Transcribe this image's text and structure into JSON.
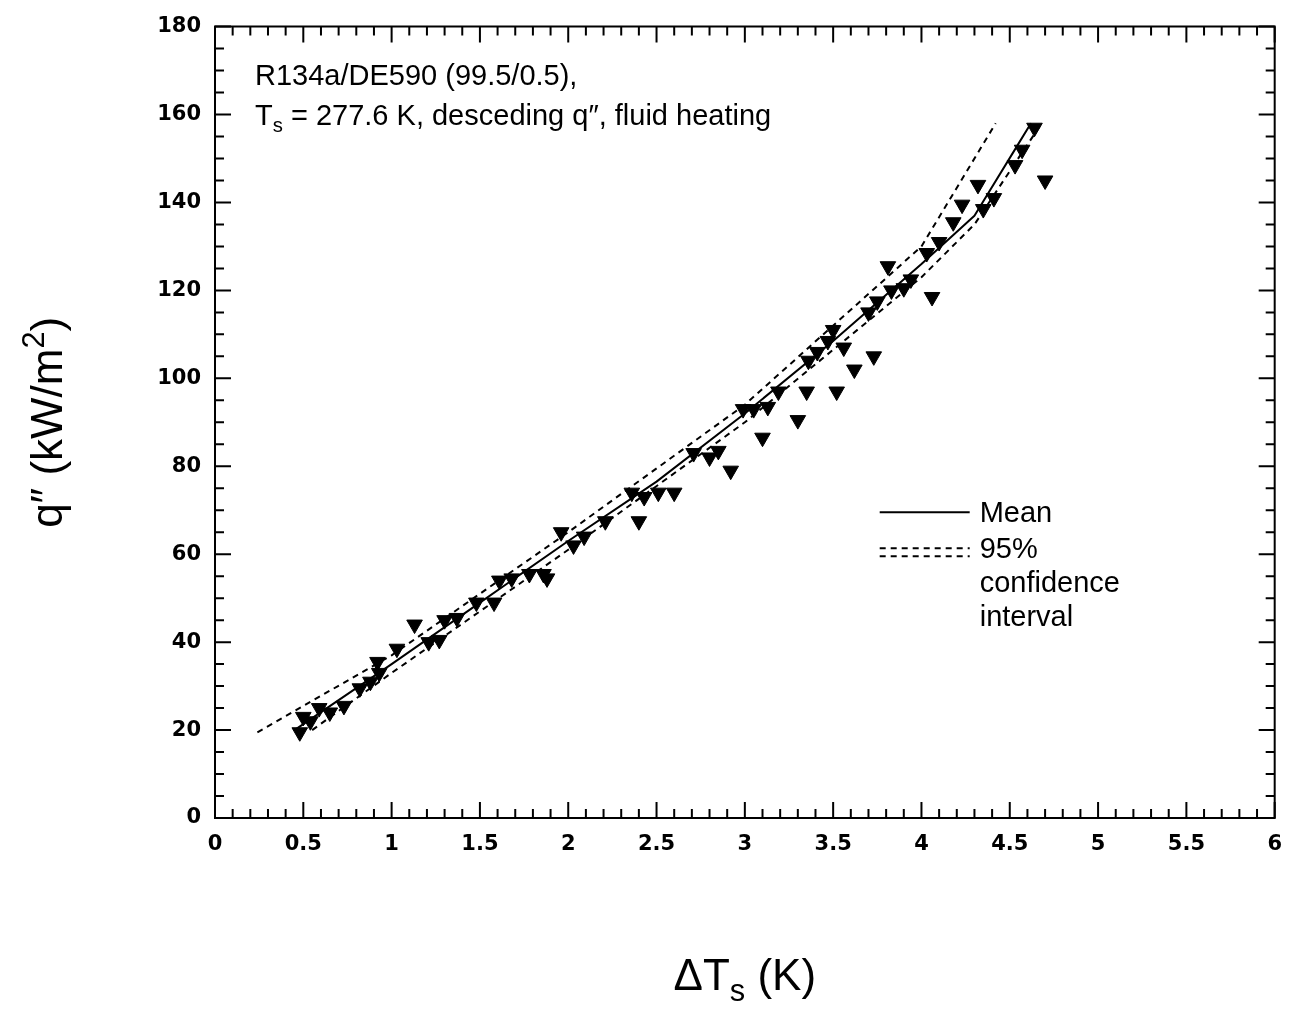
{
  "chart_data": {
    "type": "scatter",
    "title": "R134a/DE590 (99.5/0.5),",
    "subtitle": "T$_{s}$ = 277.6 K, desceding q″, fluid heating",
    "xlabel": "ΔT$_{s}$ (K)",
    "ylabel": "q″ (kW/m$^{2}$)",
    "xlim": [
      0,
      6
    ],
    "ylim": [
      0,
      180
    ],
    "xticks": [
      0,
      {
        "value": 0.1,
        "label": null
      },
      {
        "value": 0.2,
        "label": null
      },
      {
        "value": 0.3,
        "label": null
      },
      {
        "value": 0.4,
        "label": null
      },
      0.5,
      {
        "value": 0.6,
        "label": null
      },
      {
        "value": 0.7,
        "label": null
      },
      {
        "value": 0.8,
        "label": null
      },
      {
        "value": 0.9,
        "label": null
      },
      1,
      {
        "value": 1.1,
        "label": null
      },
      {
        "value": 1.2,
        "label": null
      },
      {
        "value": 1.3,
        "label": null
      },
      {
        "value": 1.4,
        "label": null
      },
      1.5,
      {
        "value": 1.6,
        "label": null
      },
      {
        "value": 1.7,
        "label": null
      },
      {
        "value": 1.8,
        "label": null
      },
      {
        "value": 1.9,
        "label": null
      },
      2,
      {
        "value": 2.1,
        "label": null
      },
      {
        "value": 2.2,
        "label": null
      },
      {
        "value": 2.3,
        "label": null
      },
      {
        "value": 2.4,
        "label": null
      },
      2.5,
      {
        "value": 2.6,
        "label": null
      },
      {
        "value": 2.7,
        "label": null
      },
      {
        "value": 2.8,
        "label": null
      },
      {
        "value": 2.9,
        "label": null
      },
      3,
      {
        "value": 3.1,
        "label": null
      },
      {
        "value": 3.2,
        "label": null
      },
      {
        "value": 3.3,
        "label": null
      },
      {
        "value": 3.4,
        "label": null
      },
      3.5,
      {
        "value": 3.6,
        "label": null
      },
      {
        "value": 3.7,
        "label": null
      },
      {
        "value": 3.8,
        "label": null
      },
      {
        "value": 3.9,
        "label": null
      },
      4,
      {
        "value": 4.1,
        "label": null
      },
      {
        "value": 4.2,
        "label": null
      },
      {
        "value": 4.3,
        "label": null
      },
      {
        "value": 4.4,
        "label": null
      },
      4.5,
      {
        "value": 4.6,
        "label": null
      },
      {
        "value": 4.7,
        "label": null
      },
      {
        "value": 4.8,
        "label": null
      },
      {
        "value": 4.9,
        "label": null
      },
      5,
      {
        "value": 5.1,
        "label": null
      },
      {
        "value": 5.2,
        "label": null
      },
      {
        "value": 5.3,
        "label": null
      },
      {
        "value": 5.4,
        "label": null
      },
      5.5,
      {
        "value": 5.6,
        "label": null
      },
      {
        "value": 5.7,
        "label": null
      },
      {
        "value": 5.8,
        "label": null
      },
      {
        "value": 5.9,
        "label": null
      },
      6
    ],
    "yticks": [
      0,
      {
        "value": 5,
        "label": null
      },
      {
        "value": 10,
        "label": null
      },
      {
        "value": 15,
        "label": null
      },
      20,
      {
        "value": 25,
        "label": null
      },
      {
        "value": 30,
        "label": null
      },
      {
        "value": 35,
        "label": null
      },
      40,
      {
        "value": 45,
        "label": null
      },
      {
        "value": 50,
        "label": null
      },
      {
        "value": 55,
        "label": null
      },
      60,
      {
        "value": 65,
        "label": null
      },
      {
        "value": 70,
        "label": null
      },
      {
        "value": 75,
        "label": null
      },
      80,
      {
        "value": 85,
        "label": null
      },
      {
        "value": 90,
        "label": null
      },
      {
        "value": 95,
        "label": null
      },
      100,
      {
        "value": 105,
        "label": null
      },
      {
        "value": 110,
        "label": null
      },
      {
        "value": 115,
        "label": null
      },
      120,
      {
        "value": 125,
        "label": null
      },
      {
        "value": 130,
        "label": null
      },
      {
        "value": 135,
        "label": null
      },
      140,
      {
        "value": 145,
        "label": null
      },
      {
        "value": 150,
        "label": null
      },
      {
        "value": 155,
        "label": null
      },
      160,
      {
        "value": 165,
        "label": null
      },
      {
        "value": 170,
        "label": null
      },
      {
        "value": 175,
        "label": null
      },
      180
    ],
    "grid": false,
    "legend": "right",
    "series": [
      {
        "marker": "triangle",
        "color": "#000000",
        "x": [
          0.48,
          0.5,
          0.54,
          0.59,
          0.65,
          0.73,
          0.82,
          0.88,
          0.92,
          0.93,
          1.03,
          1.13,
          1.21,
          1.27,
          1.3,
          1.37,
          1.48,
          1.58,
          1.61,
          1.68,
          1.78,
          1.86,
          1.88,
          1.96,
          2.03,
          2.09,
          2.21,
          2.36,
          2.4,
          2.43,
          2.51,
          2.6,
          2.71,
          2.8,
          2.85,
          2.92,
          2.99,
          3.05,
          3.1,
          3.13,
          3.19,
          3.3,
          3.35,
          3.36,
          3.41,
          3.47,
          3.5,
          3.52,
          3.56,
          3.62,
          3.7,
          3.73,
          3.75,
          3.81,
          3.83,
          3.9,
          3.94,
          4.03,
          4.06,
          4.1,
          4.18,
          4.23,
          4.32,
          4.35,
          4.41,
          4.53,
          4.57,
          4.64,
          4.7
        ],
        "values": [
          19.5,
          23,
          22,
          25,
          24,
          25.5,
          29.5,
          31,
          35.5,
          33,
          38.5,
          44,
          40,
          40.5,
          45,
          45.5,
          49,
          49,
          54,
          54.5,
          55.5,
          55.5,
          54.5,
          65,
          62,
          64,
          67.5,
          74,
          67.5,
          73,
          74,
          74,
          83,
          82,
          83.5,
          79,
          93,
          93,
          86.5,
          93.5,
          97,
          90.5,
          97,
          104,
          106,
          108.5,
          111,
          97,
          107,
          102,
          115,
          105,
          117.5,
          125.5,
          120,
          120.5,
          122.5,
          128.5,
          118.5,
          131,
          135.5,
          139.5,
          144,
          138.5,
          141,
          148.5,
          152,
          157,
          145
        ]
      },
      {
        "type": "line",
        "name": "Mean",
        "line_style": "solid",
        "color": "#000000",
        "x": [
          0.45,
          1,
          1.5,
          2,
          2.5,
          3,
          3.5,
          4,
          4.3,
          4.62
        ],
        "values": [
          20,
          35,
          49,
          63,
          76.5,
          92,
          108.5,
          126,
          137,
          158
        ]
      },
      {
        "type": "line",
        "name": "95% confidence interval",
        "line_style": "dashed",
        "color": "#000000",
        "x": [
          0.24,
          1,
          2,
          3,
          4,
          4.42
        ],
        "values": [
          19.5,
          37,
          65,
          94,
          130,
          158
        ]
      },
      {
        "type": "line",
        "line_style": "dashed",
        "color": "#000000",
        "x": [
          0.55,
          1,
          2,
          3,
          4,
          4.3,
          4.68
        ],
        "values": [
          20,
          33,
          61,
          90,
          123,
          135,
          158
        ]
      }
    ]
  }
}
